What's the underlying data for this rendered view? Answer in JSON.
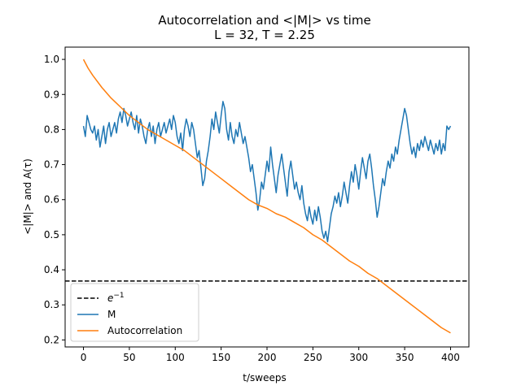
{
  "chart_data": {
    "type": "line",
    "title": "Autocorrelation and <|M|> vs time",
    "subtitle": "L = 32, T = 2.25",
    "xlabel": "t/sweeps",
    "ylabel": "<|M|> and A(τ)",
    "xlim": [
      -20,
      420
    ],
    "ylim": [
      0.18,
      1.035
    ],
    "xticks": [
      0,
      50,
      100,
      150,
      200,
      250,
      300,
      350,
      400
    ],
    "yticks": [
      0.2,
      0.3,
      0.4,
      0.5,
      0.6,
      0.7,
      0.8,
      0.9,
      1.0
    ],
    "ytick_labels": [
      "0.2",
      "0.3",
      "0.4",
      "0.5",
      "0.6",
      "0.7",
      "0.8",
      "0.9",
      "1.0"
    ],
    "grid": false,
    "legend_position": "lower-left",
    "reference_line": {
      "label": "e⁻¹",
      "label_base": "e",
      "label_sup": "−1",
      "y": 0.3679,
      "style": "dashed",
      "color": "#000000"
    },
    "series": [
      {
        "name": "M",
        "color": "#1f77b4",
        "points": [
          [
            0,
            0.81
          ],
          [
            2,
            0.78
          ],
          [
            4,
            0.84
          ],
          [
            6,
            0.82
          ],
          [
            8,
            0.8
          ],
          [
            10,
            0.79
          ],
          [
            12,
            0.81
          ],
          [
            14,
            0.77
          ],
          [
            16,
            0.8
          ],
          [
            18,
            0.75
          ],
          [
            20,
            0.78
          ],
          [
            22,
            0.81
          ],
          [
            24,
            0.76
          ],
          [
            26,
            0.8
          ],
          [
            28,
            0.82
          ],
          [
            30,
            0.78
          ],
          [
            32,
            0.8
          ],
          [
            34,
            0.82
          ],
          [
            36,
            0.79
          ],
          [
            38,
            0.83
          ],
          [
            40,
            0.85
          ],
          [
            42,
            0.82
          ],
          [
            44,
            0.86
          ],
          [
            46,
            0.84
          ],
          [
            48,
            0.81
          ],
          [
            50,
            0.83
          ],
          [
            52,
            0.85
          ],
          [
            54,
            0.82
          ],
          [
            56,
            0.8
          ],
          [
            58,
            0.84
          ],
          [
            60,
            0.79
          ],
          [
            62,
            0.83
          ],
          [
            64,
            0.81
          ],
          [
            66,
            0.78
          ],
          [
            68,
            0.76
          ],
          [
            70,
            0.8
          ],
          [
            72,
            0.82
          ],
          [
            74,
            0.78
          ],
          [
            76,
            0.81
          ],
          [
            78,
            0.76
          ],
          [
            80,
            0.8
          ],
          [
            82,
            0.82
          ],
          [
            84,
            0.78
          ],
          [
            86,
            0.8
          ],
          [
            88,
            0.82
          ],
          [
            90,
            0.79
          ],
          [
            92,
            0.81
          ],
          [
            94,
            0.83
          ],
          [
            96,
            0.8
          ],
          [
            98,
            0.84
          ],
          [
            100,
            0.82
          ],
          [
            102,
            0.78
          ],
          [
            104,
            0.76
          ],
          [
            106,
            0.79
          ],
          [
            108,
            0.74
          ],
          [
            110,
            0.8
          ],
          [
            112,
            0.83
          ],
          [
            114,
            0.81
          ],
          [
            116,
            0.78
          ],
          [
            118,
            0.82
          ],
          [
            120,
            0.8
          ],
          [
            122,
            0.76
          ],
          [
            124,
            0.72
          ],
          [
            126,
            0.74
          ],
          [
            128,
            0.69
          ],
          [
            130,
            0.64
          ],
          [
            132,
            0.66
          ],
          [
            134,
            0.71
          ],
          [
            136,
            0.74
          ],
          [
            138,
            0.78
          ],
          [
            140,
            0.83
          ],
          [
            142,
            0.8
          ],
          [
            144,
            0.85
          ],
          [
            146,
            0.82
          ],
          [
            148,
            0.79
          ],
          [
            150,
            0.84
          ],
          [
            152,
            0.88
          ],
          [
            154,
            0.86
          ],
          [
            156,
            0.8
          ],
          [
            158,
            0.77
          ],
          [
            160,
            0.82
          ],
          [
            162,
            0.78
          ],
          [
            164,
            0.76
          ],
          [
            166,
            0.8
          ],
          [
            168,
            0.78
          ],
          [
            170,
            0.82
          ],
          [
            172,
            0.79
          ],
          [
            174,
            0.76
          ],
          [
            176,
            0.78
          ],
          [
            178,
            0.75
          ],
          [
            180,
            0.72
          ],
          [
            182,
            0.68
          ],
          [
            184,
            0.7
          ],
          [
            186,
            0.66
          ],
          [
            188,
            0.62
          ],
          [
            190,
            0.57
          ],
          [
            192,
            0.6
          ],
          [
            194,
            0.65
          ],
          [
            196,
            0.63
          ],
          [
            198,
            0.67
          ],
          [
            200,
            0.71
          ],
          [
            202,
            0.68
          ],
          [
            204,
            0.75
          ],
          [
            206,
            0.7
          ],
          [
            208,
            0.66
          ],
          [
            210,
            0.62
          ],
          [
            212,
            0.67
          ],
          [
            214,
            0.7
          ],
          [
            216,
            0.73
          ],
          [
            218,
            0.69
          ],
          [
            220,
            0.65
          ],
          [
            222,
            0.61
          ],
          [
            224,
            0.68
          ],
          [
            226,
            0.71
          ],
          [
            228,
            0.67
          ],
          [
            230,
            0.63
          ],
          [
            232,
            0.65
          ],
          [
            234,
            0.62
          ],
          [
            236,
            0.6
          ],
          [
            238,
            0.64
          ],
          [
            240,
            0.59
          ],
          [
            242,
            0.56
          ],
          [
            244,
            0.54
          ],
          [
            246,
            0.58
          ],
          [
            248,
            0.55
          ],
          [
            250,
            0.53
          ],
          [
            252,
            0.57
          ],
          [
            254,
            0.54
          ],
          [
            256,
            0.58
          ],
          [
            258,
            0.55
          ],
          [
            260,
            0.51
          ],
          [
            262,
            0.49
          ],
          [
            264,
            0.51
          ],
          [
            266,
            0.48
          ],
          [
            268,
            0.52
          ],
          [
            270,
            0.56
          ],
          [
            272,
            0.58
          ],
          [
            274,
            0.61
          ],
          [
            276,
            0.59
          ],
          [
            278,
            0.62
          ],
          [
            280,
            0.58
          ],
          [
            282,
            0.61
          ],
          [
            284,
            0.65
          ],
          [
            286,
            0.62
          ],
          [
            288,
            0.59
          ],
          [
            290,
            0.64
          ],
          [
            292,
            0.68
          ],
          [
            294,
            0.65
          ],
          [
            296,
            0.7
          ],
          [
            298,
            0.67
          ],
          [
            300,
            0.63
          ],
          [
            302,
            0.68
          ],
          [
            304,
            0.72
          ],
          [
            306,
            0.69
          ],
          [
            308,
            0.66
          ],
          [
            310,
            0.71
          ],
          [
            312,
            0.73
          ],
          [
            314,
            0.69
          ],
          [
            316,
            0.64
          ],
          [
            318,
            0.6
          ],
          [
            320,
            0.55
          ],
          [
            322,
            0.58
          ],
          [
            324,
            0.62
          ],
          [
            326,
            0.66
          ],
          [
            328,
            0.64
          ],
          [
            330,
            0.68
          ],
          [
            332,
            0.71
          ],
          [
            334,
            0.69
          ],
          [
            336,
            0.73
          ],
          [
            338,
            0.71
          ],
          [
            340,
            0.75
          ],
          [
            342,
            0.73
          ],
          [
            344,
            0.77
          ],
          [
            346,
            0.8
          ],
          [
            348,
            0.83
          ],
          [
            350,
            0.86
          ],
          [
            352,
            0.84
          ],
          [
            354,
            0.8
          ],
          [
            356,
            0.76
          ],
          [
            358,
            0.73
          ],
          [
            360,
            0.75
          ],
          [
            362,
            0.72
          ],
          [
            364,
            0.76
          ],
          [
            366,
            0.74
          ],
          [
            368,
            0.77
          ],
          [
            370,
            0.75
          ],
          [
            372,
            0.78
          ],
          [
            374,
            0.76
          ],
          [
            376,
            0.74
          ],
          [
            378,
            0.77
          ],
          [
            380,
            0.75
          ],
          [
            382,
            0.73
          ],
          [
            384,
            0.76
          ],
          [
            386,
            0.74
          ],
          [
            388,
            0.77
          ],
          [
            390,
            0.73
          ],
          [
            392,
            0.76
          ],
          [
            394,
            0.74
          ],
          [
            396,
            0.81
          ],
          [
            398,
            0.8
          ],
          [
            400,
            0.81
          ]
        ]
      },
      {
        "name": "Autocorrelation",
        "color": "#ff7f0e",
        "points": [
          [
            0,
            1.0
          ],
          [
            5,
            0.975
          ],
          [
            10,
            0.955
          ],
          [
            20,
            0.92
          ],
          [
            30,
            0.89
          ],
          [
            40,
            0.865
          ],
          [
            50,
            0.84
          ],
          [
            60,
            0.82
          ],
          [
            70,
            0.8
          ],
          [
            80,
            0.785
          ],
          [
            90,
            0.77
          ],
          [
            100,
            0.755
          ],
          [
            110,
            0.74
          ],
          [
            120,
            0.72
          ],
          [
            130,
            0.7
          ],
          [
            140,
            0.68
          ],
          [
            150,
            0.66
          ],
          [
            160,
            0.64
          ],
          [
            170,
            0.62
          ],
          [
            180,
            0.6
          ],
          [
            190,
            0.585
          ],
          [
            200,
            0.575
          ],
          [
            210,
            0.56
          ],
          [
            220,
            0.55
          ],
          [
            230,
            0.535
          ],
          [
            240,
            0.52
          ],
          [
            250,
            0.5
          ],
          [
            260,
            0.485
          ],
          [
            270,
            0.465
          ],
          [
            280,
            0.445
          ],
          [
            290,
            0.425
          ],
          [
            300,
            0.41
          ],
          [
            310,
            0.39
          ],
          [
            320,
            0.375
          ],
          [
            330,
            0.355
          ],
          [
            340,
            0.335
          ],
          [
            350,
            0.315
          ],
          [
            360,
            0.295
          ],
          [
            370,
            0.275
          ],
          [
            380,
            0.255
          ],
          [
            390,
            0.235
          ],
          [
            400,
            0.22
          ]
        ]
      }
    ]
  }
}
